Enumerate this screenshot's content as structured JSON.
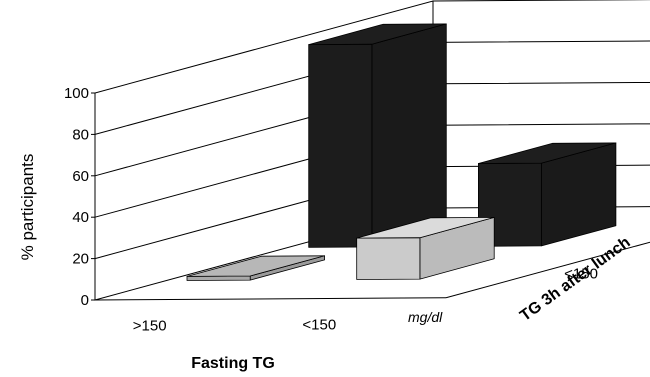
{
  "chart_data": {
    "type": "bar",
    "chart_style": "3d-bar",
    "ylabel": "% participants",
    "xlabel": "Fasting TG",
    "zlabel": "TG 3h after lunch",
    "z_unit": "mg/dl",
    "ylim": [
      0,
      100
    ],
    "yticks": [
      0,
      20,
      40,
      60,
      80,
      100
    ],
    "grid": true,
    "categories": [
      ">150",
      "<150"
    ],
    "series": [
      {
        "name": "<150",
        "values": [
          2,
          20
        ],
        "colors": [
          "#a9a9a9",
          "#cbcbcb"
        ]
      },
      {
        "name": ">150",
        "values": [
          98,
          40
        ],
        "colors": [
          "#1c1c1c",
          "#1c1c1c"
        ]
      }
    ]
  }
}
